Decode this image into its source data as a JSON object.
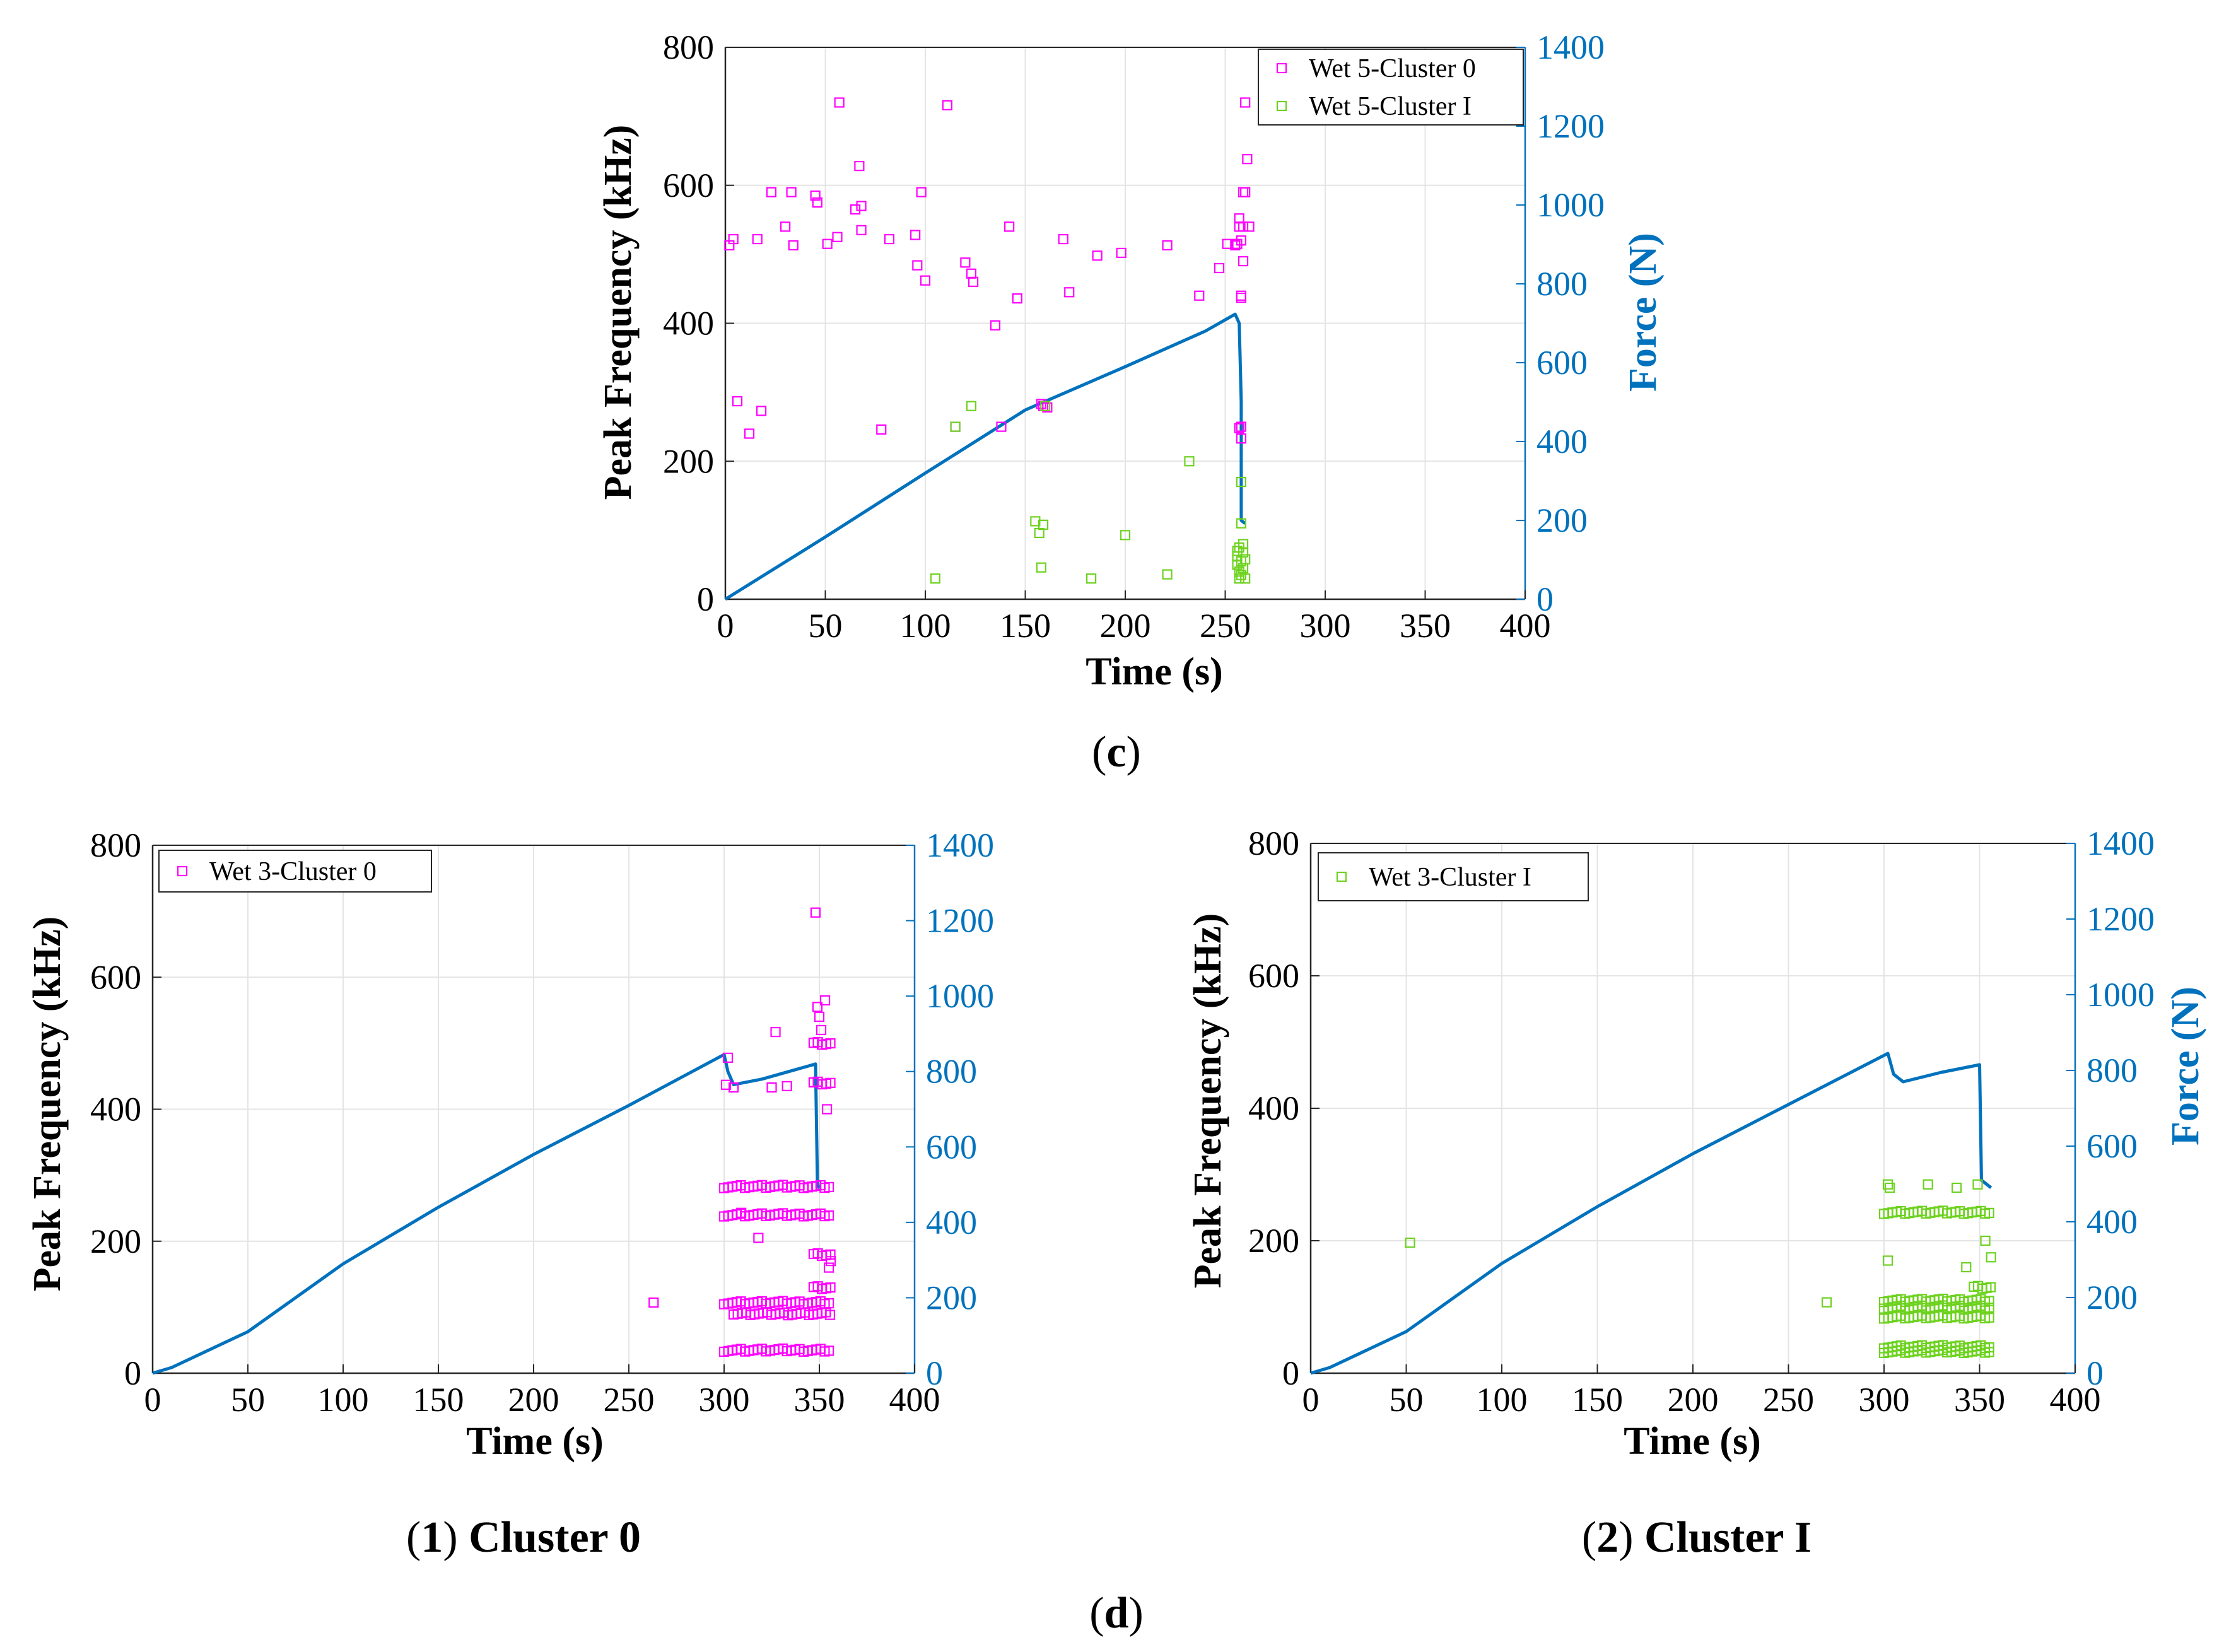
{
  "colors": {
    "magenta": "#ff00ff",
    "green": "#6dd21f",
    "force": "#0072BD",
    "axis_black": "#000000"
  },
  "captions": {
    "c": {
      "open": "(",
      "letter": "c",
      "close": ")"
    },
    "d": {
      "open": "(",
      "letter": "d",
      "close": ")"
    },
    "sub1": {
      "open": "(",
      "num": "1",
      "close": ")",
      "text": " Cluster 0"
    },
    "sub2": {
      "open": "(",
      "num": "2",
      "close": ")",
      "text": " Cluster I"
    }
  },
  "chart_data": [
    {
      "id": "c",
      "type": "scatter",
      "xlabel": "Time (s)",
      "ylabel": "Peak Frequency (kHz)",
      "y2label": "Force (N)",
      "xlim": [
        0,
        400
      ],
      "ylim": [
        0,
        800
      ],
      "y2lim": [
        0,
        1400
      ],
      "xticks": [
        "0",
        "50",
        "100",
        "150",
        "200",
        "250",
        "300",
        "350",
        "400"
      ],
      "yticks": [
        "0",
        "200",
        "400",
        "600",
        "800"
      ],
      "y2ticks": [
        "0",
        "200",
        "400",
        "600",
        "800",
        "1000",
        "1200",
        "1400"
      ],
      "grid": true,
      "legend_position": "top-right",
      "series": [
        {
          "name": "Wet 5-Cluster 0",
          "color": "#ff00ff",
          "marker": "square",
          "points": [
            [
              2,
              513
            ],
            [
              4,
              522
            ],
            [
              6,
              287
            ],
            [
              12,
              240
            ],
            [
              16,
              522
            ],
            [
              18,
              273
            ],
            [
              23,
              590
            ],
            [
              30,
              540
            ],
            [
              33,
              590
            ],
            [
              34,
              513
            ],
            [
              45,
              585
            ],
            [
              46,
              575
            ],
            [
              51,
              515
            ],
            [
              56,
              525
            ],
            [
              57,
              720
            ],
            [
              65,
              565
            ],
            [
              67,
              628
            ],
            [
              68,
              535
            ],
            [
              68,
              570
            ],
            [
              78,
              246
            ],
            [
              82,
              522
            ],
            [
              95,
              528
            ],
            [
              96,
              484
            ],
            [
              98,
              590
            ],
            [
              100,
              462
            ],
            [
              111,
              716
            ],
            [
              115,
              250
            ],
            [
              120,
              488
            ],
            [
              123,
              472
            ],
            [
              124,
              460
            ],
            [
              135,
              397
            ],
            [
              138,
              250
            ],
            [
              142,
              540
            ],
            [
              146,
              436
            ],
            [
              158,
              283
            ],
            [
              159,
              280
            ],
            [
              161,
              278
            ],
            [
              169,
              522
            ],
            [
              172,
              445
            ],
            [
              186,
              498
            ],
            [
              198,
              502
            ],
            [
              221,
              513
            ],
            [
              237,
              440
            ],
            [
              247,
              480
            ],
            [
              251,
              515
            ],
            [
              255,
              513
            ],
            [
              256,
              515
            ],
            [
              257,
              540
            ],
            [
              257,
              552
            ],
            [
              257,
              248
            ],
            [
              258,
              250
            ],
            [
              258,
              233
            ],
            [
              258,
              440
            ],
            [
              258,
              437
            ],
            [
              258,
              520
            ],
            [
              259,
              590
            ],
            [
              259,
              540
            ],
            [
              259,
              490
            ],
            [
              260,
              720
            ],
            [
              260,
              590
            ],
            [
              261,
              638
            ],
            [
              262,
              540
            ]
          ]
        },
        {
          "name": "Wet 5-Cluster I",
          "color": "#6dd21f",
          "marker": "square",
          "points": [
            [
              105,
              30
            ],
            [
              115,
              250
            ],
            [
              123,
              280
            ],
            [
              155,
              113
            ],
            [
              157,
              96
            ],
            [
              158,
              46
            ],
            [
              159,
              108
            ],
            [
              160,
              280
            ],
            [
              183,
              30
            ],
            [
              200,
              93
            ],
            [
              221,
              36
            ],
            [
              232,
              200
            ],
            [
              256,
              70
            ],
            [
              256,
              50
            ],
            [
              256,
              62
            ],
            [
              257,
              30
            ],
            [
              257,
              40
            ],
            [
              257,
              75
            ],
            [
              258,
              170
            ],
            [
              258,
              110
            ],
            [
              258,
              55
            ],
            [
              258,
              35
            ],
            [
              259,
              68
            ],
            [
              259,
              45
            ],
            [
              259,
              80
            ],
            [
              260,
              30
            ],
            [
              260,
              58
            ]
          ]
        }
      ],
      "force_curve": [
        [
          0,
          0
        ],
        [
          50,
          158
        ],
        [
          100,
          320
        ],
        [
          125,
          400
        ],
        [
          150,
          480
        ],
        [
          200,
          590
        ],
        [
          240,
          680
        ],
        [
          255,
          723
        ],
        [
          257,
          700
        ],
        [
          258,
          500
        ],
        [
          258,
          200
        ],
        [
          260,
          192
        ]
      ]
    },
    {
      "id": "d1",
      "type": "scatter",
      "xlabel": "Time (s)",
      "ylabel": "Peak Frequency (kHz)",
      "y2label": "",
      "xlim": [
        0,
        400
      ],
      "ylim": [
        0,
        800
      ],
      "y2lim": [
        0,
        1400
      ],
      "xticks": [
        "0",
        "50",
        "100",
        "150",
        "200",
        "250",
        "300",
        "350",
        "400"
      ],
      "yticks": [
        "0",
        "200",
        "400",
        "600",
        "800"
      ],
      "y2ticks": [
        "0",
        "200",
        "400",
        "600",
        "800",
        "1000",
        "1200",
        "1400"
      ],
      "grid": true,
      "legend_position": "top-left",
      "series": [
        {
          "name": "Wet 3-Cluster 0",
          "color": "#ff00ff",
          "marker": "square",
          "points": [
            [
              263,
              107
            ],
            [
              301,
              437
            ],
            [
              302,
              478
            ],
            [
              305,
              433
            ],
            [
              309,
              243
            ],
            [
              318,
              205
            ],
            [
              325,
              433
            ],
            [
              327,
              517
            ],
            [
              333,
              435
            ],
            [
              348,
              698
            ],
            [
              349,
              555
            ],
            [
              350,
              540
            ],
            [
              351,
              520
            ],
            [
              353,
              565
            ],
            [
              354,
              400
            ],
            [
              355,
              160
            ],
            [
              356,
              170
            ]
          ],
          "bands": [
            {
              "y": 283,
              "from": 300,
              "to": 356
            },
            {
              "y": 240,
              "from": 300,
              "to": 356
            },
            {
              "y": 107,
              "from": 300,
              "to": 356
            },
            {
              "y": 90,
              "from": 305,
              "to": 356
            },
            {
              "y": 35,
              "from": 300,
              "to": 356
            },
            {
              "y": 440,
              "from": 347,
              "to": 356
            },
            {
              "y": 500,
              "from": 347,
              "to": 356
            },
            {
              "y": 180,
              "from": 347,
              "to": 356
            },
            {
              "y": 130,
              "from": 347,
              "to": 356
            }
          ]
        }
      ],
      "force_curve": [
        [
          0,
          0
        ],
        [
          10,
          15
        ],
        [
          50,
          110
        ],
        [
          100,
          290
        ],
        [
          150,
          440
        ],
        [
          200,
          580
        ],
        [
          250,
          710
        ],
        [
          300,
          845
        ],
        [
          302,
          800
        ],
        [
          305,
          765
        ],
        [
          320,
          780
        ],
        [
          348,
          820
        ],
        [
          349,
          500
        ],
        [
          350,
          490
        ]
      ]
    },
    {
      "id": "d2",
      "type": "scatter",
      "xlabel": "Time (s)",
      "ylabel": "Peak Frequency (kHz)",
      "y2label": "Force (N)",
      "xlim": [
        0,
        400
      ],
      "ylim": [
        0,
        800
      ],
      "y2lim": [
        0,
        1400
      ],
      "xticks": [
        "0",
        "50",
        "100",
        "150",
        "200",
        "250",
        "300",
        "350",
        "400"
      ],
      "yticks": [
        "0",
        "200",
        "400",
        "600",
        "800"
      ],
      "y2ticks": [
        "0",
        "200",
        "400",
        "600",
        "800",
        "1000",
        "1200",
        "1400"
      ],
      "grid": true,
      "legend_position": "top-left",
      "series": [
        {
          "name": "Wet 3-Cluster I",
          "color": "#6dd21f",
          "marker": "square",
          "points": [
            [
              52,
              197
            ],
            [
              270,
              107
            ],
            [
              302,
              170
            ],
            [
              302,
              285
            ],
            [
              303,
              280
            ],
            [
              323,
              285
            ],
            [
              338,
              280
            ],
            [
              343,
              160
            ],
            [
              349,
              285
            ],
            [
              353,
              200
            ],
            [
              356,
              175
            ]
          ],
          "bands": [
            {
              "y": 243,
              "from": 300,
              "to": 356
            },
            {
              "y": 110,
              "from": 300,
              "to": 356
            },
            {
              "y": 100,
              "from": 300,
              "to": 356
            },
            {
              "y": 85,
              "from": 300,
              "to": 356
            },
            {
              "y": 33,
              "from": 300,
              "to": 356
            },
            {
              "y": 40,
              "from": 300,
              "to": 356
            },
            {
              "y": 130,
              "from": 347,
              "to": 356
            }
          ]
        }
      ],
      "force_curve": [
        [
          0,
          0
        ],
        [
          10,
          15
        ],
        [
          50,
          110
        ],
        [
          100,
          290
        ],
        [
          150,
          440
        ],
        [
          200,
          580
        ],
        [
          250,
          710
        ],
        [
          302,
          845
        ],
        [
          305,
          790
        ],
        [
          310,
          770
        ],
        [
          330,
          795
        ],
        [
          350,
          815
        ],
        [
          351,
          510
        ],
        [
          356,
          490
        ]
      ]
    }
  ]
}
